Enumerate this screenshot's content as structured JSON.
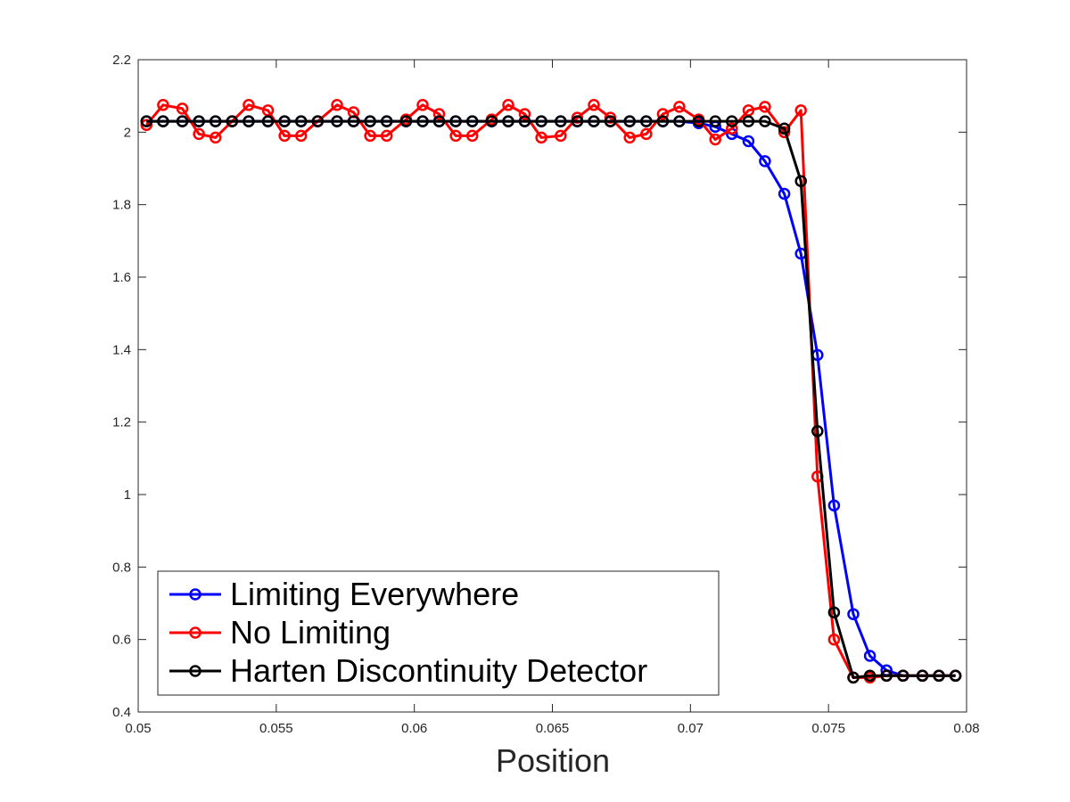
{
  "chart_data": {
    "type": "line",
    "title": "",
    "xlabel": "Position",
    "ylabel": "",
    "xlim": [
      0.05,
      0.08
    ],
    "ylim": [
      0.4,
      2.2
    ],
    "xticks": [
      0.05,
      0.055,
      0.06,
      0.065,
      0.07,
      0.075,
      0.08
    ],
    "xtick_labels": [
      "0.05",
      "0.055",
      "0.06",
      "0.065",
      "0.07",
      "0.075",
      "0.08"
    ],
    "yticks": [
      0.4,
      0.6,
      0.8,
      1.0,
      1.2,
      1.4,
      1.6,
      1.8,
      2.0,
      2.2
    ],
    "ytick_labels": [
      "0.4",
      "0.6",
      "0.8",
      "1",
      "1.2",
      "1.4",
      "1.6",
      "1.8",
      "2",
      "2.2"
    ],
    "grid": false,
    "legend_position": "bottom-left",
    "series": [
      {
        "name": "Limiting Everywhere",
        "color": "#0000ff",
        "marker": "circle",
        "x": [
          0.0503,
          0.0509,
          0.0516,
          0.0522,
          0.0528,
          0.0534,
          0.054,
          0.0547,
          0.0553,
          0.0559,
          0.0565,
          0.0572,
          0.0578,
          0.0584,
          0.059,
          0.0597,
          0.0603,
          0.0609,
          0.0615,
          0.0621,
          0.0628,
          0.0634,
          0.064,
          0.0646,
          0.0653,
          0.0659,
          0.0665,
          0.0671,
          0.0678,
          0.0684,
          0.069,
          0.0696,
          0.0703,
          0.0709,
          0.0715,
          0.0721,
          0.0727,
          0.0734,
          0.074,
          0.0746,
          0.0752,
          0.0759,
          0.0765,
          0.0771,
          0.0777,
          0.0784,
          0.079,
          0.0796
        ],
        "y": [
          2.03,
          2.03,
          2.03,
          2.03,
          2.03,
          2.03,
          2.03,
          2.03,
          2.03,
          2.03,
          2.03,
          2.03,
          2.03,
          2.03,
          2.03,
          2.03,
          2.03,
          2.03,
          2.03,
          2.03,
          2.03,
          2.03,
          2.03,
          2.03,
          2.03,
          2.03,
          2.03,
          2.03,
          2.03,
          2.03,
          2.03,
          2.03,
          2.025,
          2.015,
          1.995,
          1.975,
          1.92,
          1.83,
          1.665,
          1.385,
          0.97,
          0.67,
          0.555,
          0.515,
          0.5,
          0.5,
          0.5,
          0.5
        ]
      },
      {
        "name": "No Limiting",
        "color": "#ff0000",
        "marker": "circle",
        "x": [
          0.0503,
          0.0509,
          0.0516,
          0.0522,
          0.0528,
          0.0534,
          0.054,
          0.0547,
          0.0553,
          0.0559,
          0.0565,
          0.0572,
          0.0578,
          0.0584,
          0.059,
          0.0597,
          0.0603,
          0.0609,
          0.0615,
          0.0621,
          0.0628,
          0.0634,
          0.064,
          0.0646,
          0.0653,
          0.0659,
          0.0665,
          0.0671,
          0.0678,
          0.0684,
          0.069,
          0.0696,
          0.0703,
          0.0709,
          0.0715,
          0.0721,
          0.0727,
          0.0734,
          0.074,
          0.0746,
          0.0752,
          0.0759,
          0.0765,
          0.0771,
          0.0777,
          0.0784,
          0.079,
          0.0796
        ],
        "y": [
          2.02,
          2.075,
          2.065,
          1.995,
          1.985,
          2.03,
          2.075,
          2.06,
          1.99,
          1.99,
          2.03,
          2.075,
          2.055,
          1.99,
          1.99,
          2.035,
          2.075,
          2.05,
          1.99,
          1.99,
          2.035,
          2.075,
          2.05,
          1.985,
          1.99,
          2.04,
          2.075,
          2.04,
          1.985,
          1.995,
          2.05,
          2.07,
          2.035,
          1.98,
          2.01,
          2.06,
          2.07,
          2.0,
          2.06,
          1.05,
          0.6,
          0.495,
          0.495,
          0.5,
          0.5,
          0.5,
          0.5,
          0.5
        ]
      },
      {
        "name": "Harten Discontinuity Detector",
        "color": "#000000",
        "marker": "circle",
        "x": [
          0.0503,
          0.0509,
          0.0516,
          0.0522,
          0.0528,
          0.0534,
          0.054,
          0.0547,
          0.0553,
          0.0559,
          0.0565,
          0.0572,
          0.0578,
          0.0584,
          0.059,
          0.0597,
          0.0603,
          0.0609,
          0.0615,
          0.0621,
          0.0628,
          0.0634,
          0.064,
          0.0646,
          0.0653,
          0.0659,
          0.0665,
          0.0671,
          0.0678,
          0.0684,
          0.069,
          0.0696,
          0.0703,
          0.0709,
          0.0715,
          0.0721,
          0.0727,
          0.0734,
          0.074,
          0.0746,
          0.0752,
          0.0759,
          0.0765,
          0.0771,
          0.0777,
          0.0784,
          0.079,
          0.0796
        ],
        "y": [
          2.03,
          2.03,
          2.03,
          2.03,
          2.03,
          2.03,
          2.03,
          2.03,
          2.03,
          2.03,
          2.03,
          2.03,
          2.03,
          2.03,
          2.03,
          2.03,
          2.03,
          2.03,
          2.03,
          2.03,
          2.03,
          2.03,
          2.03,
          2.03,
          2.03,
          2.03,
          2.03,
          2.03,
          2.03,
          2.03,
          2.03,
          2.03,
          2.03,
          2.03,
          2.03,
          2.03,
          2.03,
          2.01,
          1.865,
          1.175,
          0.675,
          0.495,
          0.5,
          0.5,
          0.5,
          0.5,
          0.5,
          0.5
        ]
      }
    ]
  }
}
